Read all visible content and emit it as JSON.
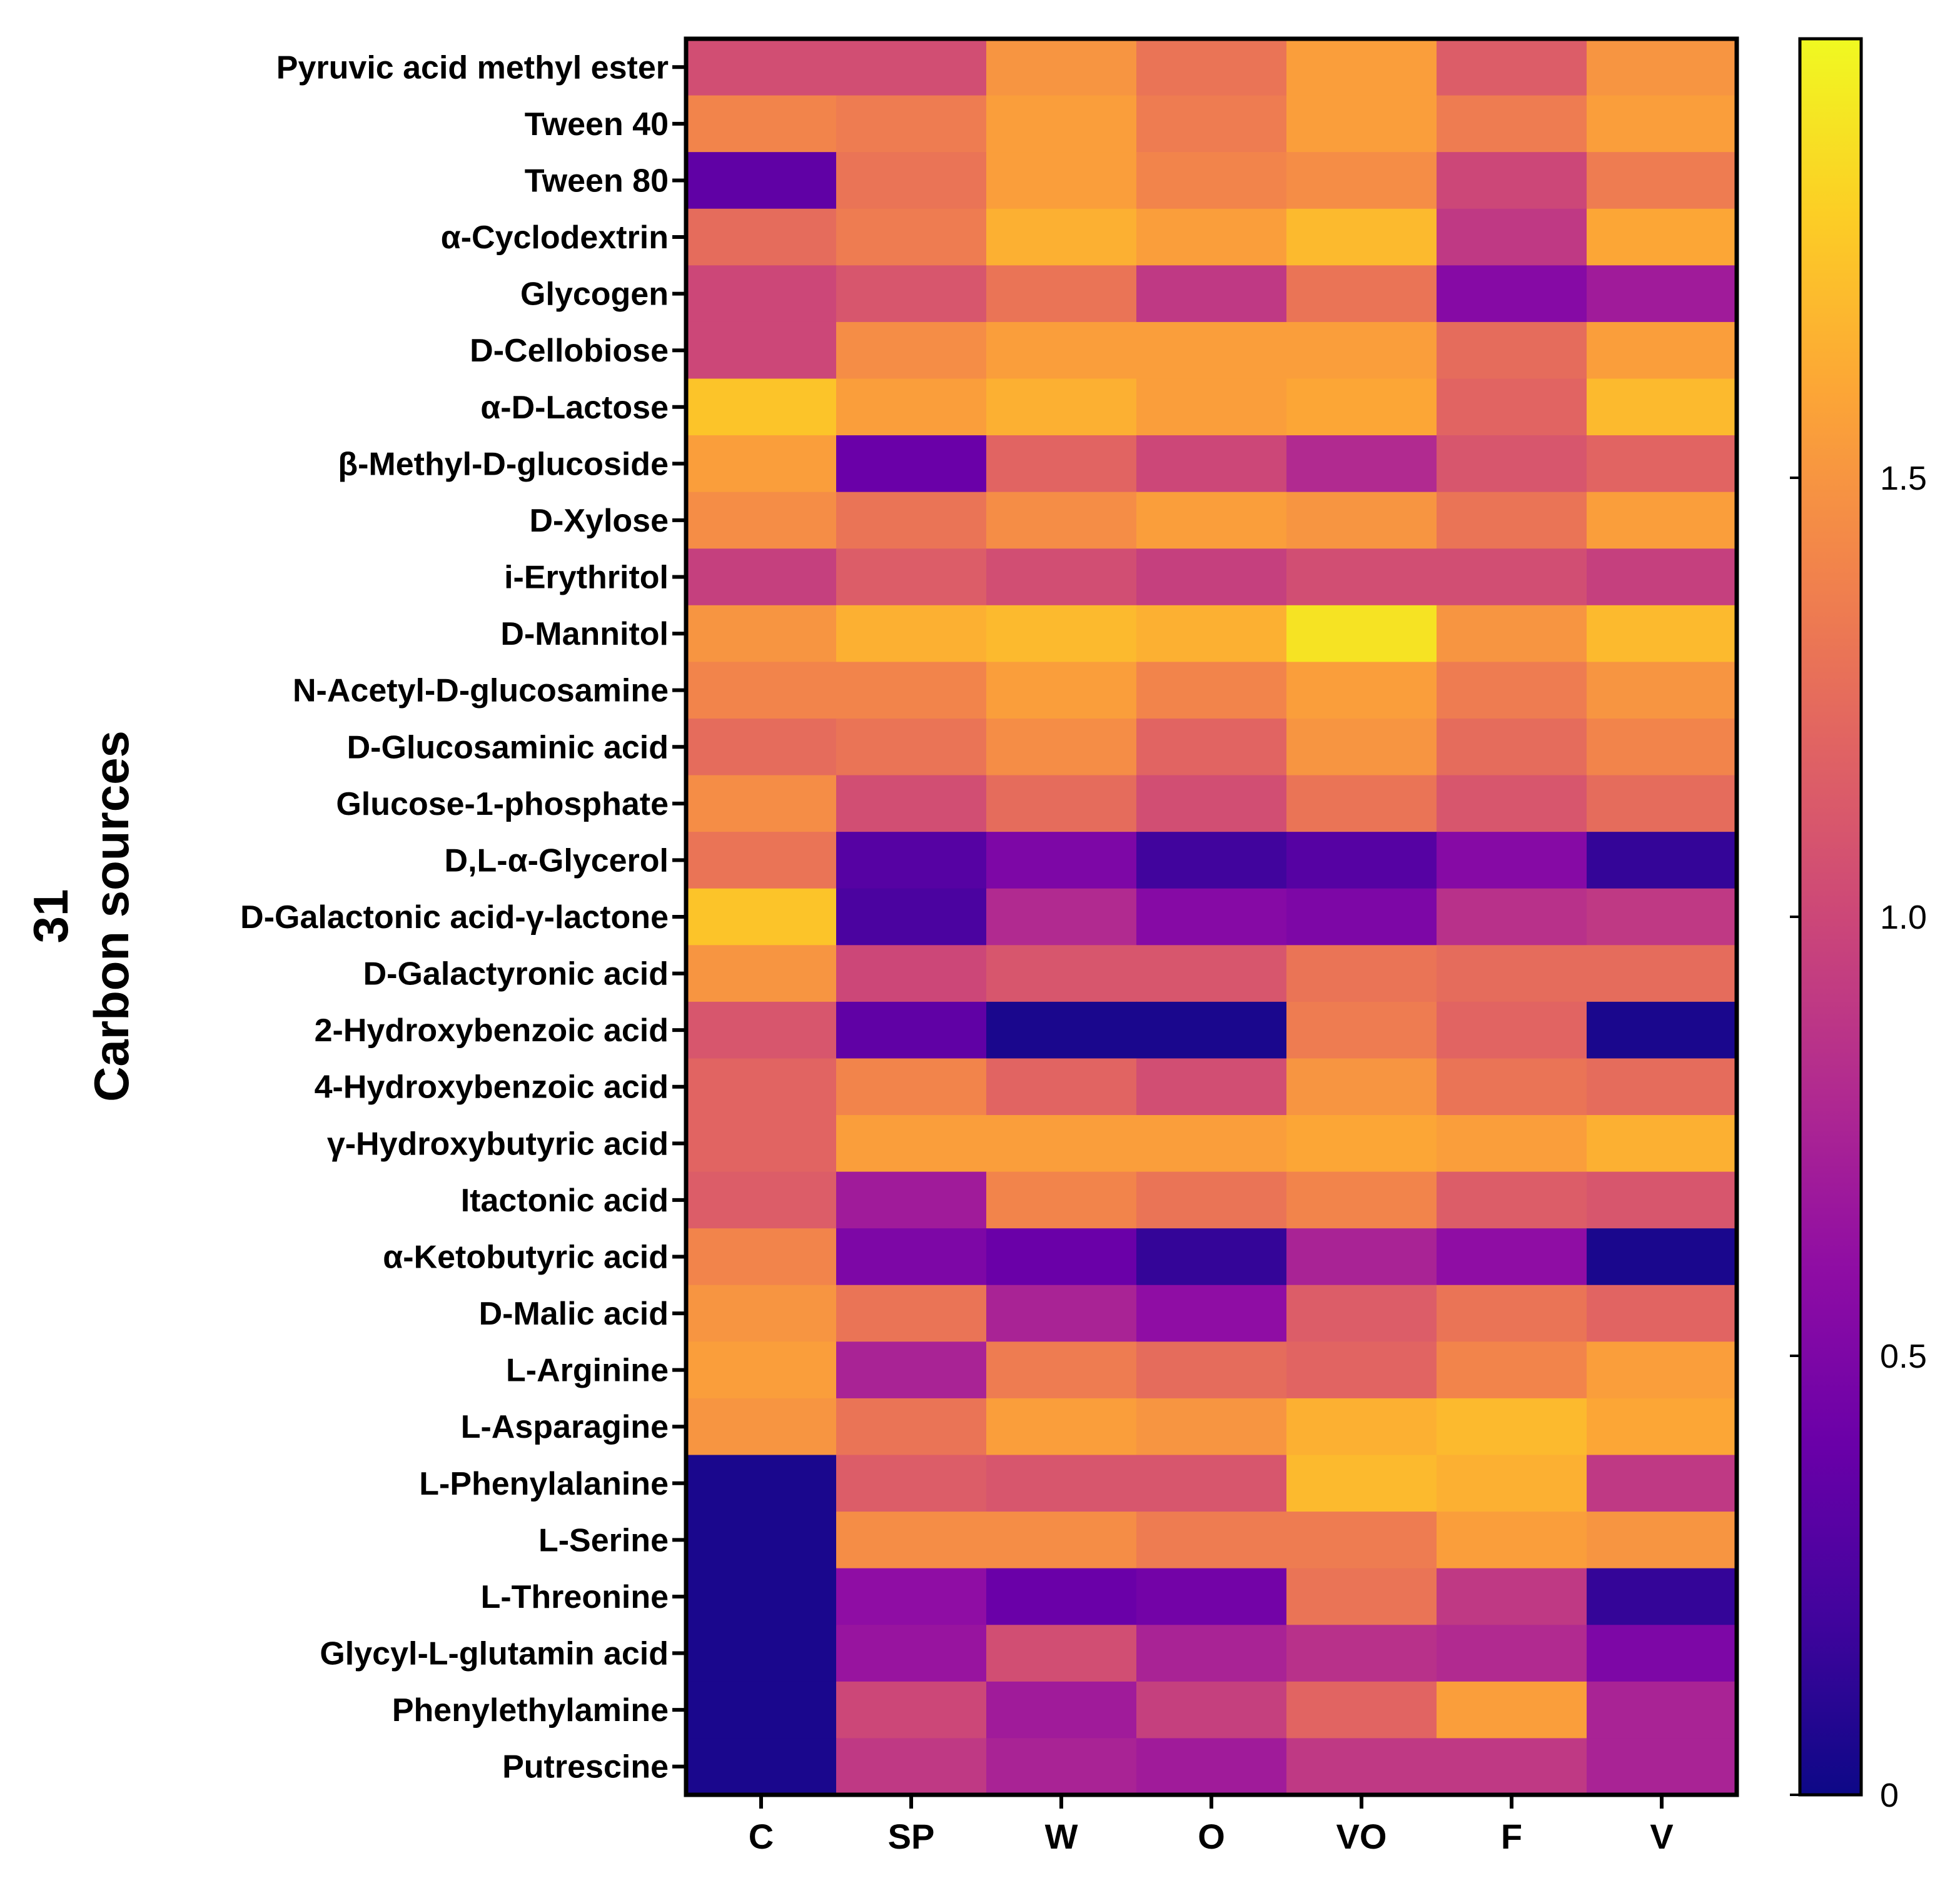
{
  "chart_data": {
    "type": "heatmap",
    "ylabel": [
      "31",
      "Carbon sources"
    ],
    "x_categories": [
      "C",
      "SP",
      "W",
      "O",
      "VO",
      "F",
      "V"
    ],
    "y_categories": [
      "Pyruvic acid methyl ester",
      "Tween 40",
      "Tween 80",
      "α-Cyclodextrin",
      "Glycogen",
      "D-Cellobiose",
      "α-D-Lactose",
      "β-Methyl-D-glucoside",
      "D-Xylose",
      "i-Erythritol",
      "D-Mannitol",
      "N-Acetyl-D-glucosamine",
      "D-Glucosaminic acid",
      "Glucose-1-phosphate",
      "D,L-α-Glycerol",
      "D-Galactonic acid-γ-lactone",
      "D-Galactyronic acid",
      "2-Hydroxybenzoic acid",
      "4-Hydroxybenzoic acid",
      "γ-Hydroxybutyric acid",
      "Itactonic acid",
      "α-Ketobutyric acid",
      "D-Malic acid",
      "L-Arginine",
      "L-Asparagine",
      "L-Phenylalanine",
      "L-Serine",
      "L-Threonine",
      "Glycyl-L-glutamin acid",
      "Phenylethylamine",
      "Putrescine"
    ],
    "values": [
      [
        1.05,
        1.05,
        1.5,
        1.3,
        1.55,
        1.15,
        1.5
      ],
      [
        1.4,
        1.35,
        1.55,
        1.35,
        1.55,
        1.35,
        1.55
      ],
      [
        0.35,
        1.3,
        1.55,
        1.4,
        1.45,
        1.0,
        1.35
      ],
      [
        1.25,
        1.35,
        1.65,
        1.55,
        1.7,
        0.9,
        1.6
      ],
      [
        1.0,
        1.1,
        1.3,
        0.9,
        1.3,
        0.55,
        0.7
      ],
      [
        1.0,
        1.45,
        1.55,
        1.55,
        1.55,
        1.25,
        1.55
      ],
      [
        1.75,
        1.55,
        1.65,
        1.55,
        1.6,
        1.2,
        1.7
      ],
      [
        1.55,
        0.4,
        1.2,
        1.0,
        0.8,
        1.1,
        1.2
      ],
      [
        1.45,
        1.3,
        1.45,
        1.55,
        1.5,
        1.3,
        1.55
      ],
      [
        0.95,
        1.15,
        1.05,
        0.95,
        1.05,
        1.05,
        0.95
      ],
      [
        1.5,
        1.65,
        1.7,
        1.65,
        1.9,
        1.5,
        1.7
      ],
      [
        1.4,
        1.4,
        1.55,
        1.4,
        1.55,
        1.35,
        1.5
      ],
      [
        1.25,
        1.3,
        1.45,
        1.2,
        1.5,
        1.25,
        1.4
      ],
      [
        1.45,
        1.05,
        1.25,
        1.05,
        1.3,
        1.1,
        1.25
      ],
      [
        1.3,
        0.3,
        0.5,
        0.2,
        0.3,
        0.55,
        0.15
      ],
      [
        1.75,
        0.25,
        0.8,
        0.55,
        0.5,
        0.85,
        0.9
      ],
      [
        1.5,
        1.0,
        1.1,
        1.1,
        1.3,
        1.25,
        1.25
      ],
      [
        1.1,
        0.35,
        0.05,
        0.05,
        1.35,
        1.2,
        0.05
      ],
      [
        1.2,
        1.4,
        1.2,
        1.05,
        1.5,
        1.3,
        1.25
      ],
      [
        1.2,
        1.55,
        1.55,
        1.55,
        1.6,
        1.55,
        1.65
      ],
      [
        1.15,
        0.7,
        1.4,
        1.3,
        1.4,
        1.15,
        1.1
      ],
      [
        1.4,
        0.5,
        0.4,
        0.15,
        0.75,
        0.6,
        0.05
      ],
      [
        1.5,
        1.3,
        0.75,
        0.6,
        1.15,
        1.3,
        1.2
      ],
      [
        1.55,
        0.75,
        1.35,
        1.25,
        1.2,
        1.4,
        1.55
      ],
      [
        1.5,
        1.3,
        1.55,
        1.5,
        1.65,
        1.7,
        1.6
      ],
      [
        0.05,
        1.15,
        1.1,
        1.1,
        1.7,
        1.65,
        0.9
      ],
      [
        0.05,
        1.45,
        1.45,
        1.35,
        1.35,
        1.55,
        1.5
      ],
      [
        0.05,
        0.6,
        0.4,
        0.45,
        1.3,
        0.9,
        0.15
      ],
      [
        0.05,
        0.65,
        1.05,
        0.75,
        0.85,
        0.8,
        0.5
      ],
      [
        0.05,
        1.0,
        0.7,
        0.95,
        1.2,
        1.55,
        0.75
      ],
      [
        0.05,
        0.9,
        0.75,
        0.7,
        0.9,
        0.9,
        0.75
      ]
    ],
    "colorscale": "plasma",
    "vmin": 0,
    "vmax": 2.0,
    "colorbar": {
      "ticks": [
        0,
        0.5,
        1.0,
        1.5
      ],
      "tick_labels": [
        "0",
        "0.5",
        "1.0",
        "1.5"
      ]
    }
  }
}
